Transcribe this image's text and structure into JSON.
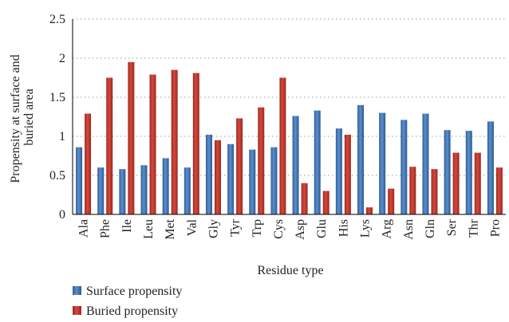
{
  "chart_data": {
    "type": "bar",
    "xlabel": "Residue type",
    "ylabel": "Propensity at surface and buried area",
    "ylabel_lines": [
      "Propensity at surface and",
      "buried area"
    ],
    "ylim": [
      0,
      2.5
    ],
    "yticks": [
      "0",
      "0.5",
      "1",
      "1.5",
      "2",
      "2.5"
    ],
    "grid": true,
    "legend_position": "bottom-left",
    "categories": [
      "Ala",
      "Phe",
      "Ile",
      "Leu",
      "Met",
      "Val",
      "Gly",
      "Tyr",
      "Trp",
      "Cys",
      "Asp",
      "Glu",
      "His",
      "Lys",
      "Arg",
      "Asn",
      "Gln",
      "Ser",
      "Thr",
      "Pro"
    ],
    "series": [
      {
        "name": "Surface propensity",
        "color": "#4a7ebb",
        "values": [
          0.86,
          0.6,
          0.58,
          0.63,
          0.72,
          0.6,
          1.02,
          0.9,
          0.83,
          0.86,
          1.26,
          1.33,
          1.1,
          1.4,
          1.3,
          1.21,
          1.29,
          1.08,
          1.07,
          1.19
        ]
      },
      {
        "name": "Buried propensity",
        "color": "#c0392f",
        "values": [
          1.29,
          1.75,
          1.95,
          1.79,
          1.85,
          1.81,
          0.95,
          1.23,
          1.37,
          1.75,
          0.4,
          0.3,
          1.02,
          0.09,
          0.33,
          0.61,
          0.58,
          0.79,
          0.79,
          0.6
        ]
      }
    ]
  }
}
